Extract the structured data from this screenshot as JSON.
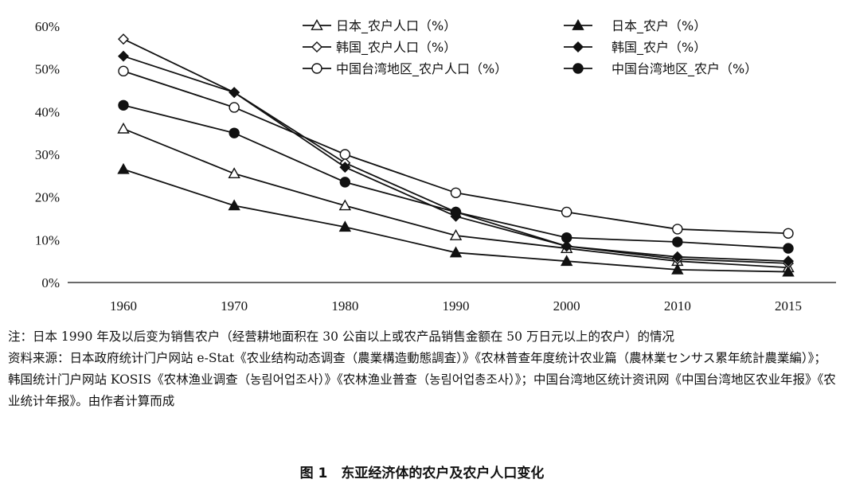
{
  "chart_data": {
    "type": "line",
    "categories": [
      "1960",
      "1970",
      "1980",
      "1990",
      "2000",
      "2010",
      "2015"
    ],
    "y_ticks": [
      "0%",
      "10%",
      "20%",
      "30%",
      "40%",
      "50%",
      "60%"
    ],
    "ylim": [
      0,
      60
    ],
    "grid": false,
    "legend_position": "top",
    "series": [
      {
        "name": "日本_农户人口（%）",
        "marker": "triangle-open",
        "values": [
          36,
          25.5,
          18,
          11,
          8,
          5,
          3.5
        ]
      },
      {
        "name": "日本_农户（%）",
        "marker": "triangle-filled",
        "values": [
          26.5,
          18,
          13,
          7,
          5,
          3,
          2.5
        ]
      },
      {
        "name": "韩国_农户人口（%）",
        "marker": "diamond-open",
        "values": [
          57,
          44.5,
          28,
          16.5,
          8.5,
          5.5,
          4.5
        ]
      },
      {
        "name": "韩国_农户（%）",
        "marker": "diamond-filled",
        "values": [
          53,
          44.5,
          27,
          15.5,
          8.5,
          6,
          5
        ]
      },
      {
        "name": "中国台湾地区_农户人口（%）",
        "marker": "circle-open",
        "values": [
          49.5,
          41,
          30,
          21,
          16.5,
          12.5,
          11.5
        ]
      },
      {
        "name": "中国台湾地区_农户（%）",
        "marker": "circle-filled",
        "values": [
          41.5,
          35,
          23.5,
          16.5,
          10.5,
          9.5,
          8
        ]
      }
    ]
  },
  "notes": {
    "note": "注：日本 1990 年及以后变为销售农户（经营耕地面积在 30 公亩以上或农产品销售金额在 50 万日元以上的农户）的情况",
    "source": "资料来源：日本政府统计门户网站 e-Stat《农业结构动态调查（農業構造動態調査）》《农林普查年度统计农业篇（農林業センサス累年統計農業編）》；韩国统计门户网站 KOSIS《农林渔业调查（농림어업조사）》《农林渔业普查（농림어업총조사）》；中国台湾地区统计资讯网《中国台湾地区农业年报》《农业统计年报》。由作者计算而成"
  },
  "caption": "图 1　东亚经济体的农户及农户人口变化"
}
